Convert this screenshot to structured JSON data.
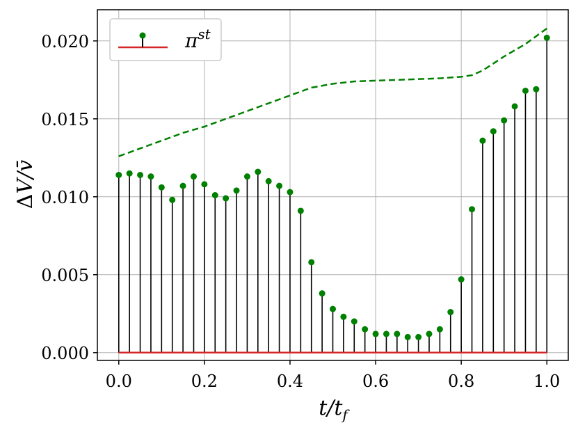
{
  "chart_data": {
    "type": "stem",
    "xlabel": "t/t_f",
    "ylabel": "ΔV/v̄",
    "xlim": [
      -0.05,
      1.05
    ],
    "ylim": [
      -0.0005,
      0.022
    ],
    "grid": true,
    "legend": {
      "placement": "top-left",
      "entries": [
        {
          "label": "π^st"
        }
      ]
    },
    "xticks": [
      0.0,
      0.2,
      0.4,
      0.6,
      0.8,
      1.0
    ],
    "xtick_labels": [
      "0.0",
      "0.2",
      "0.4",
      "0.6",
      "0.8",
      "1.0"
    ],
    "yticks": [
      0.0,
      0.005,
      0.01,
      0.015,
      0.02
    ],
    "ytick_labels": [
      "0.000",
      "0.005",
      "0.010",
      "0.015",
      "0.020"
    ],
    "stem_series": {
      "baseline": 0.0,
      "x": [
        0.0,
        0.025,
        0.05,
        0.075,
        0.1,
        0.125,
        0.15,
        0.175,
        0.2,
        0.225,
        0.25,
        0.275,
        0.3,
        0.325,
        0.35,
        0.375,
        0.4,
        0.425,
        0.45,
        0.475,
        0.5,
        0.525,
        0.55,
        0.575,
        0.6,
        0.625,
        0.65,
        0.675,
        0.7,
        0.725,
        0.75,
        0.775,
        0.8,
        0.825,
        0.85,
        0.875,
        0.9,
        0.925,
        0.95,
        0.975,
        1.0
      ],
      "y": [
        0.0114,
        0.0115,
        0.0114,
        0.0113,
        0.0106,
        0.0098,
        0.0107,
        0.0113,
        0.0108,
        0.0101,
        0.0099,
        0.0104,
        0.0113,
        0.0116,
        0.011,
        0.0107,
        0.0103,
        0.0091,
        0.0058,
        0.0038,
        0.0028,
        0.0023,
        0.002,
        0.0015,
        0.0012,
        0.0012,
        0.0012,
        0.001,
        0.001,
        0.0012,
        0.0015,
        0.0026,
        0.0047,
        0.0092,
        0.0136,
        0.0142,
        0.0149,
        0.0158,
        0.0168,
        0.0169,
        0.0202
      ]
    },
    "dashed_series": {
      "x": [
        0.0,
        0.05,
        0.1,
        0.15,
        0.2,
        0.25,
        0.3,
        0.35,
        0.4,
        0.45,
        0.5,
        0.55,
        0.6,
        0.65,
        0.7,
        0.75,
        0.8,
        0.825,
        0.85,
        0.9,
        0.95,
        1.0
      ],
      "y": [
        0.0126,
        0.0131,
        0.0136,
        0.0141,
        0.0145,
        0.015,
        0.0155,
        0.016,
        0.0165,
        0.017,
        0.01725,
        0.0174,
        0.01745,
        0.0175,
        0.01755,
        0.0176,
        0.0177,
        0.0178,
        0.0181,
        0.019,
        0.0198,
        0.0208
      ]
    },
    "colors": {
      "marker": "#008000",
      "stem": "#000000",
      "baseline": "#d62728",
      "dashed": "#008000",
      "grid": "#b0b0b0"
    }
  }
}
